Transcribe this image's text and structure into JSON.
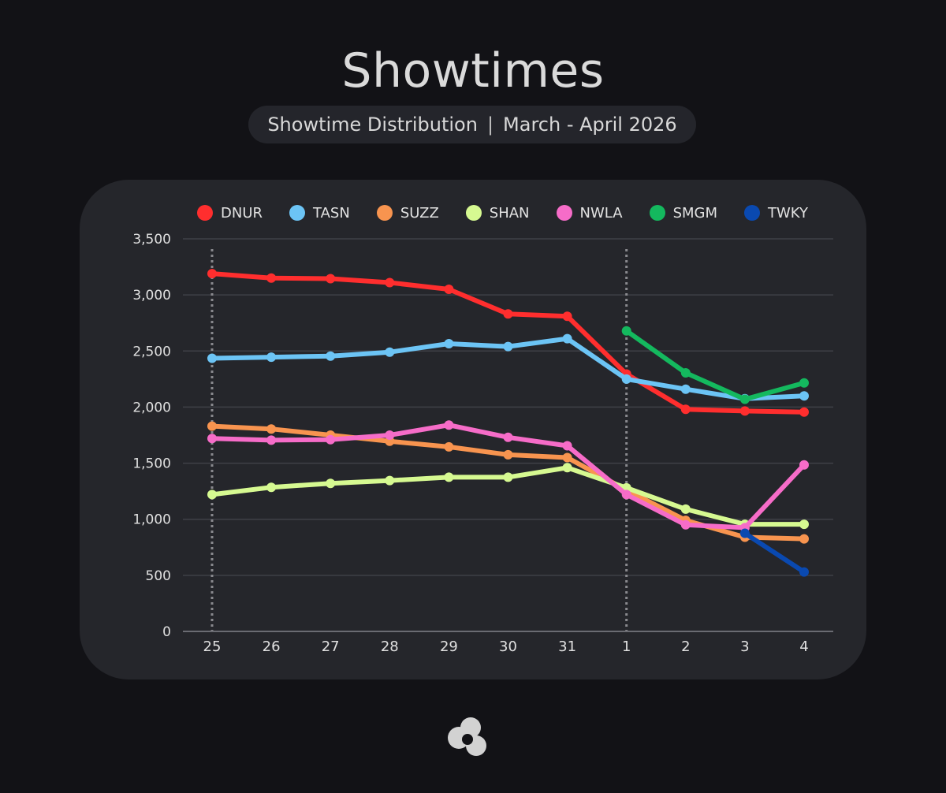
{
  "header": {
    "title": "Showtimes",
    "subtitle_left": "Showtime Distribution",
    "subtitle_sep": "|",
    "subtitle_right": "March - April 2026"
  },
  "chart_data": {
    "type": "line",
    "title": "Showtimes",
    "subtitle": "Showtime Distribution | March - April 2026",
    "xlabel": "",
    "ylabel": "",
    "categories": [
      "25",
      "26",
      "27",
      "28",
      "29",
      "30",
      "31",
      "1",
      "2",
      "3",
      "4"
    ],
    "ylim": [
      0,
      3500
    ],
    "yticks": [
      0,
      500,
      1000,
      1500,
      2000,
      2500,
      3000,
      3500
    ],
    "ytick_labels": [
      "0",
      "500",
      "1,000",
      "1,500",
      "2,000",
      "2,500",
      "3,000",
      "3,500"
    ],
    "grid": true,
    "legend_position": "top",
    "month_markers": [
      "25",
      "1"
    ],
    "series": [
      {
        "name": "DNUR",
        "color": "#ff2e2e",
        "values": [
          3190,
          3150,
          3145,
          3110,
          3050,
          2830,
          2810,
          2295,
          1980,
          1965,
          1955
        ]
      },
      {
        "name": "TASN",
        "color": "#6cc4f5",
        "values": [
          2435,
          2445,
          2455,
          2490,
          2565,
          2540,
          2610,
          2250,
          2160,
          2075,
          2100
        ]
      },
      {
        "name": "SUZZ",
        "color": "#f8944f",
        "values": [
          1830,
          1805,
          1750,
          1695,
          1645,
          1575,
          1550,
          1260,
          990,
          840,
          825
        ]
      },
      {
        "name": "SHAN",
        "color": "#d6f991",
        "values": [
          1220,
          1285,
          1320,
          1345,
          1375,
          1375,
          1460,
          1280,
          1090,
          955,
          955
        ]
      },
      {
        "name": "NWLA",
        "color": "#f66cc8",
        "values": [
          1720,
          1705,
          1710,
          1750,
          1840,
          1730,
          1655,
          1220,
          950,
          925,
          1485
        ]
      },
      {
        "name": "SMGM",
        "color": "#14b85e",
        "values": [
          null,
          null,
          null,
          null,
          null,
          null,
          null,
          2680,
          2305,
          2070,
          2215
        ]
      },
      {
        "name": "TWKY",
        "color": "#0a49b0",
        "values": [
          null,
          null,
          null,
          null,
          null,
          null,
          null,
          null,
          null,
          875,
          530
        ]
      }
    ]
  }
}
